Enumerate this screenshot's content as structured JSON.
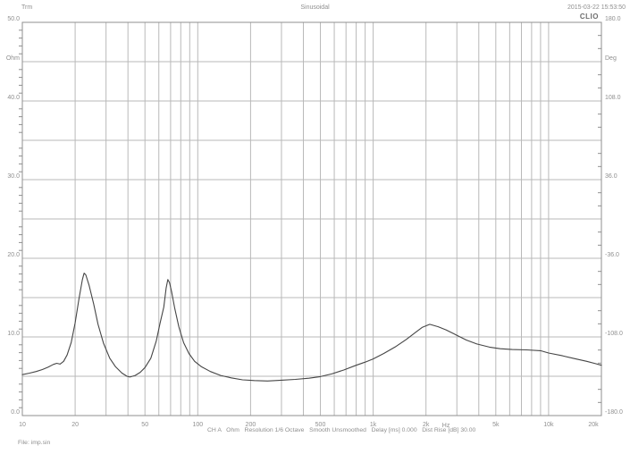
{
  "header": {
    "left": "Trm",
    "center": "Sinusoidal",
    "right": "2015-03-22 15:53:50",
    "brand": "CLIO"
  },
  "footer": {
    "info": "CH A   Ohm   Resolution 1/6 Octave   Smooth Unsmoothed   Delay [ms] 0.000   Dist Rise [dB] 30.00",
    "file": "File: imp.sin"
  },
  "chart_data": {
    "type": "line",
    "title": "Sinusoidal",
    "x_axis": {
      "scale": "log",
      "min": 10,
      "max": 20000,
      "unit": "Hz",
      "unit_label_freq": 2600,
      "tick_labels": [
        "10",
        "20",
        "50",
        "100",
        "200",
        "500",
        "1k",
        "2k",
        "5k",
        "10k",
        "20k"
      ],
      "tick_values": [
        10,
        20,
        50,
        100,
        200,
        500,
        1000,
        2000,
        5000,
        10000,
        20000
      ],
      "grid": "every 1-9 per decade"
    },
    "y_left_axis": {
      "unit": "Ohm",
      "min": 0,
      "max": 50,
      "gridline_step": 5,
      "minor_tick_step": 1,
      "unit_label_value": 45,
      "tick_labels": [
        "50.0",
        "40.0",
        "30.0",
        "20.0",
        "10.0",
        "0.0"
      ],
      "tick_values": [
        50,
        40,
        30,
        20,
        10,
        0
      ]
    },
    "y_right_axis": {
      "unit": "Deg",
      "min": -180,
      "max": 180,
      "minor_tick_step": 12,
      "unit_label_value": 144,
      "tick_labels": [
        "180.0",
        "108.0",
        "36.0",
        "-36.0",
        "-108.0",
        "-180.0"
      ],
      "tick_values": [
        180,
        108,
        36,
        -36,
        -108,
        -180
      ]
    },
    "series": [
      {
        "name": "impedance-magnitude",
        "unit": "Ohm",
        "color": "#454545",
        "points": [
          [
            10,
            5.2
          ],
          [
            11,
            5.4
          ],
          [
            12,
            5.6
          ],
          [
            13,
            5.85
          ],
          [
            14,
            6.15
          ],
          [
            15,
            6.5
          ],
          [
            15.7,
            6.65
          ],
          [
            16.4,
            6.55
          ],
          [
            17.2,
            6.9
          ],
          [
            18,
            7.7
          ],
          [
            19,
            9.3
          ],
          [
            20,
            11.8
          ],
          [
            21,
            14.8
          ],
          [
            22,
            17.3
          ],
          [
            22.5,
            18.1
          ],
          [
            23,
            17.9
          ],
          [
            24,
            16.6
          ],
          [
            25.5,
            14.2
          ],
          [
            27,
            11.6
          ],
          [
            29,
            9.2
          ],
          [
            31.5,
            7.3
          ],
          [
            34,
            6.2
          ],
          [
            37,
            5.4
          ],
          [
            39.5,
            5.0
          ],
          [
            41,
            4.9
          ],
          [
            44,
            5.1
          ],
          [
            47,
            5.5
          ],
          [
            50,
            6.1
          ],
          [
            54,
            7.3
          ],
          [
            58,
            9.5
          ],
          [
            61,
            11.8
          ],
          [
            64,
            13.8
          ],
          [
            66,
            16.2
          ],
          [
            67.5,
            17.3
          ],
          [
            69,
            16.9
          ],
          [
            71,
            15.7
          ],
          [
            74,
            13.6
          ],
          [
            78,
            11.3
          ],
          [
            83,
            9.3
          ],
          [
            89,
            7.9
          ],
          [
            96,
            6.9
          ],
          [
            105,
            6.2
          ],
          [
            118,
            5.6
          ],
          [
            135,
            5.1
          ],
          [
            155,
            4.8
          ],
          [
            180,
            4.55
          ],
          [
            210,
            4.45
          ],
          [
            250,
            4.4
          ],
          [
            300,
            4.5
          ],
          [
            360,
            4.6
          ],
          [
            430,
            4.75
          ],
          [
            500,
            4.95
          ],
          [
            580,
            5.3
          ],
          [
            680,
            5.8
          ],
          [
            800,
            6.4
          ],
          [
            900,
            6.8
          ],
          [
            1000,
            7.2
          ],
          [
            1150,
            7.9
          ],
          [
            1350,
            8.8
          ],
          [
            1550,
            9.7
          ],
          [
            1750,
            10.6
          ],
          [
            1900,
            11.2
          ],
          [
            2100,
            11.6
          ],
          [
            2350,
            11.3
          ],
          [
            2600,
            10.9
          ],
          [
            3000,
            10.2
          ],
          [
            3400,
            9.6
          ],
          [
            3900,
            9.1
          ],
          [
            4600,
            8.7
          ],
          [
            5300,
            8.5
          ],
          [
            6200,
            8.4
          ],
          [
            7500,
            8.35
          ],
          [
            9000,
            8.25
          ],
          [
            10000,
            7.95
          ],
          [
            12000,
            7.6
          ],
          [
            14000,
            7.25
          ],
          [
            16500,
            6.9
          ],
          [
            18500,
            6.6
          ],
          [
            20000,
            6.4
          ]
        ]
      }
    ],
    "legend": "none",
    "colors": {
      "grid": "#b9b9b9",
      "border": "#8f8f8f",
      "curve": "#454545",
      "text": "#8f8f8f"
    }
  }
}
